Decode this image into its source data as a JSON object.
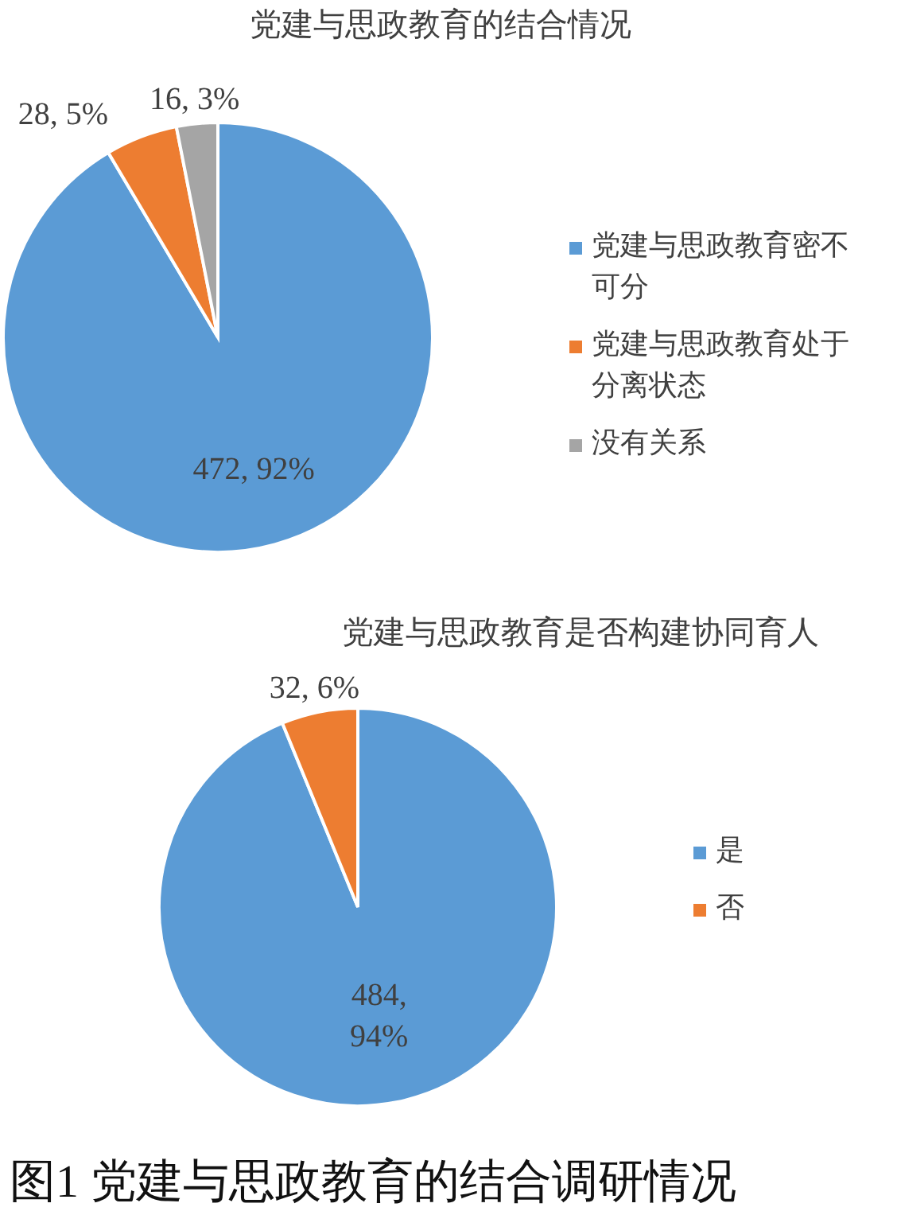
{
  "chart_data": [
    {
      "type": "pie",
      "title": "党建与思政教育的结合情况",
      "categories": [
        "党建与思政教育密不可分",
        "党建与思政教育处于分离状态",
        "没有关系"
      ],
      "values": [
        472,
        28,
        16
      ],
      "colors": [
        "#5b9bd5",
        "#ed7d31",
        "#a5a5a5"
      ],
      "value_labels": [
        "472, 92%",
        "28, 5%",
        "16, 3%"
      ],
      "legend": "right"
    },
    {
      "type": "pie",
      "title": "党建与思政教育是否构建协同育人",
      "categories": [
        "是",
        "否"
      ],
      "values": [
        484,
        32
      ],
      "colors": [
        "#5b9bd5",
        "#ed7d31"
      ],
      "value_labels": [
        "484, 94%",
        "32, 6%"
      ],
      "legend": "right",
      "annotations": [
        "图1 党建与思政教育的结合调研情况"
      ]
    }
  ]
}
